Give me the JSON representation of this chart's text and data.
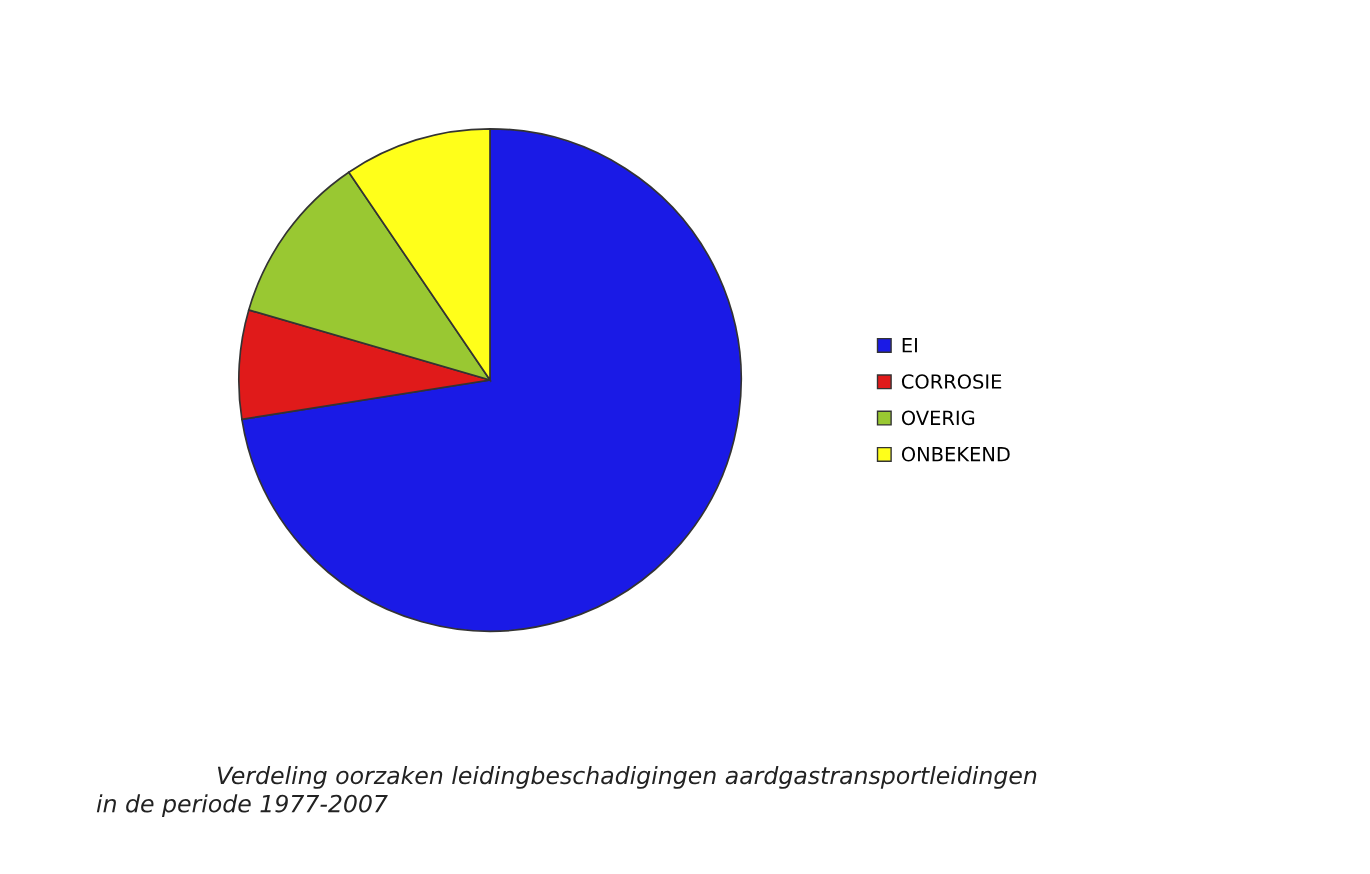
{
  "chart_data": {
    "type": "pie",
    "categories": [
      "EI",
      "CORROSIE",
      "OVERIG",
      "ONBEKEND"
    ],
    "values": [
      72.5,
      7,
      11,
      9.5
    ],
    "colors": [
      "#1a1ae6",
      "#e01a1a",
      "#99c832",
      "#ffff1a"
    ],
    "legend": "right",
    "annotations": [
      "Verdeling oorzaken leidingbeschadigingen aardgastransportleidingen\nin de periode 1977-2007"
    ]
  }
}
